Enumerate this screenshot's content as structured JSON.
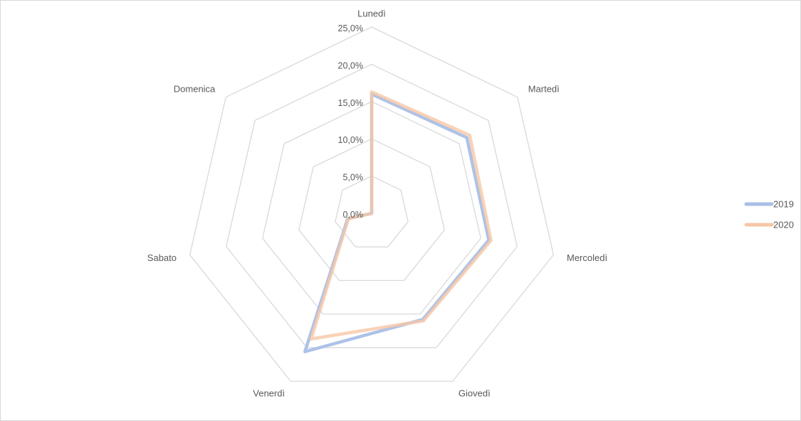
{
  "chart_data": {
    "type": "radar",
    "categories": [
      "Lunedì",
      "Martedì",
      "Mercoledì",
      "Giovedì",
      "Venerdì",
      "Sabato",
      "Domenica"
    ],
    "series": [
      {
        "name": "2019",
        "color": "#a9bfe6",
        "values": [
          16.0,
          16.3,
          16.1,
          15.8,
          20.6,
          3.3,
          0.0
        ]
      },
      {
        "name": "2020",
        "color": "#f6c7a6",
        "values": [
          16.3,
          16.8,
          16.4,
          16.0,
          18.7,
          3.2,
          0.0
        ]
      }
    ],
    "r_ticks": [
      "0,0%",
      "5,0%",
      "10,0%",
      "15,0%",
      "20,0%",
      "25,0%"
    ],
    "r_range": [
      0,
      25
    ],
    "grid": true,
    "legend_position": "right"
  }
}
